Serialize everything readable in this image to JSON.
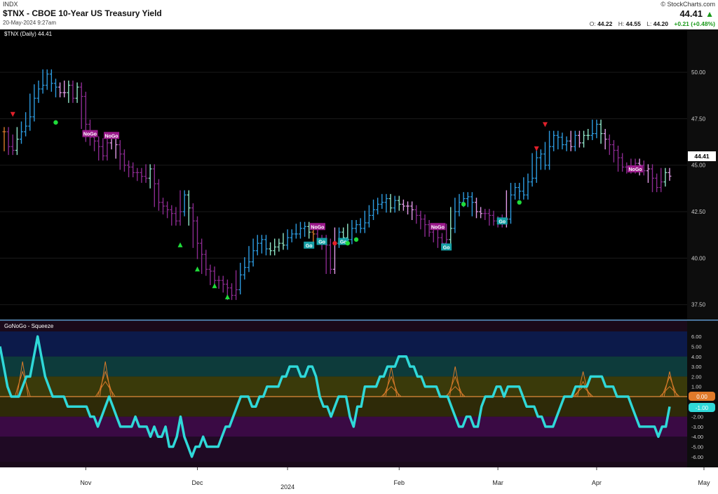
{
  "header": {
    "exchange": "INDX",
    "title": "$TNX - CBOE 10-Year US Treasury Yield",
    "timestamp": "20-May-2024 9:27am",
    "brand": "© StockCharts.com",
    "last": "44.41",
    "open_label": "O:",
    "open": "44.22",
    "high_label": "H:",
    "high": "44.55",
    "low_label": "L:",
    "low": "44.20",
    "change": "+0.21 (+0.48%)"
  },
  "colors": {
    "strong_go": "#2d9be0",
    "weak_go": "#8fe7c9",
    "nogo": "#8a2a8f",
    "weak_nogo": "#e29be8",
    "neutral": "#d87a2a",
    "oscillator": "#2fd8d8",
    "bullish_triangle": "#1fdc3a",
    "bearish_triangle": "#e0202a"
  },
  "chart_data": [
    {
      "type": "line",
      "panel": "price",
      "legend": "$TNX (Daily) 44.41",
      "last_value_label": "44.41",
      "ylim": [
        37.0,
        52.0
      ],
      "y_ticks": [
        "50.00",
        "47.50",
        "45.00",
        "42.50",
        "40.00",
        "37.50"
      ],
      "x_tick_labels": [
        "Nov",
        "Dec",
        "2024",
        "Feb",
        "Mar",
        "Apr",
        "May"
      ],
      "series": [
        {
          "values": [
            46.8,
            46.0,
            45.8,
            46.4,
            46.8,
            47.1,
            47.6,
            48.6,
            49.1,
            49.3,
            49.9,
            49.4,
            49.2,
            48.9,
            48.9,
            49.3,
            48.6,
            49.2,
            48.7,
            47.2,
            46.5,
            46.3,
            46.0,
            45.5,
            46.2,
            46.5,
            46.1,
            45.6,
            45.0,
            44.9,
            44.6,
            44.6,
            44.4,
            44.3,
            44.8,
            44.0,
            43.0,
            42.8,
            42.6,
            42.4,
            42.0,
            42.5,
            43.4,
            42.7,
            42.0,
            40.8,
            40.2,
            39.4,
            39.3,
            38.8,
            38.8,
            38.6,
            38.4,
            38.0,
            38.3,
            39.1,
            39.5,
            39.8,
            40.4,
            40.8,
            41.0,
            40.5,
            40.4,
            40.6,
            40.8,
            40.7,
            41.1,
            41.3,
            41.3,
            41.6,
            41.7,
            41.4,
            41.3,
            41.0,
            41.0,
            40.7,
            39.4,
            40.8,
            41.4,
            41.1,
            41.0,
            41.6,
            41.8,
            41.6,
            41.9,
            42.3,
            42.6,
            42.9,
            43.0,
            43.2,
            42.7,
            43.1,
            42.9,
            42.8,
            42.8,
            42.6,
            42.3,
            42.1,
            41.8,
            41.4,
            41.6,
            41.1,
            40.8,
            41.0,
            41.6,
            42.5,
            43.0,
            43.2,
            43.3,
            43.0,
            42.5,
            42.4,
            42.4,
            42.3,
            42.0,
            42.0,
            41.9,
            42.1,
            43.4,
            43.8,
            43.6,
            43.4,
            44.1,
            44.3,
            45.4,
            45.6,
            45.0,
            46.0,
            46.6,
            46.5,
            46.1,
            46.3,
            46.0,
            46.6,
            46.2,
            46.6,
            46.6,
            46.7,
            47.2,
            46.7,
            46.4,
            46.1,
            45.8,
            45.4,
            44.9,
            44.9,
            44.8,
            45.1,
            45.0,
            44.7,
            44.8,
            44.3,
            43.8,
            44.1,
            44.6,
            44.41
          ]
        }
      ],
      "markers": [
        {
          "x": 2,
          "y": 47.75,
          "shape": "down-triangle",
          "color": "#e0202a"
        },
        {
          "x": 12,
          "y": 47.3,
          "shape": "circle",
          "color": "#1fdc3a"
        },
        {
          "x": 20,
          "y": 46.7,
          "label": "NoGo"
        },
        {
          "x": 25,
          "y": 46.6,
          "label": "NoGo"
        },
        {
          "x": 41,
          "y": 40.7,
          "shape": "up-triangle",
          "color": "#1fdc3a"
        },
        {
          "x": 45,
          "y": 39.4,
          "shape": "up-triangle",
          "color": "#1fdc3a"
        },
        {
          "x": 49,
          "y": 38.5,
          "shape": "up-triangle",
          "color": "#1fdc3a"
        },
        {
          "x": 52,
          "y": 37.9,
          "shape": "up-triangle",
          "color": "#1fdc3a"
        },
        {
          "x": 71,
          "y": 40.7,
          "label": "Go"
        },
        {
          "x": 73,
          "y": 41.7,
          "label": "NoGo"
        },
        {
          "x": 74,
          "y": 40.9,
          "label": "Go"
        },
        {
          "x": 77,
          "y": 40.8,
          "shape": "circle",
          "color": "#e0202a"
        },
        {
          "x": 79,
          "y": 40.9,
          "label": "Go"
        },
        {
          "x": 80,
          "y": 40.8,
          "shape": "circle",
          "color": "#1fdc3a"
        },
        {
          "x": 82,
          "y": 41.0,
          "shape": "circle",
          "color": "#1fdc3a"
        },
        {
          "x": 101,
          "y": 41.7,
          "label": "NoGo"
        },
        {
          "x": 103,
          "y": 40.6,
          "label": "Go"
        },
        {
          "x": 107,
          "y": 42.9,
          "shape": "circle",
          "color": "#1fdc3a"
        },
        {
          "x": 116,
          "y": 42.0,
          "label": "Go"
        },
        {
          "x": 120,
          "y": 43.0,
          "shape": "circle",
          "color": "#1fdc3a"
        },
        {
          "x": 124,
          "y": 45.9,
          "shape": "down-triangle",
          "color": "#e0202a"
        },
        {
          "x": 126,
          "y": 47.2,
          "shape": "down-triangle",
          "color": "#e0202a"
        },
        {
          "x": 147,
          "y": 44.8,
          "label": "NoGo"
        }
      ]
    },
    {
      "type": "line",
      "panel": "oscillator",
      "legend": "GoNoGo - Squeeze",
      "ylim": [
        -6.5,
        6.5
      ],
      "y_ticks": [
        "6.00",
        "5.00",
        "4.00",
        "3.00",
        "2.00",
        "1.00",
        "0.00",
        "-1.00",
        "-2.00",
        "-3.00",
        "-4.00",
        "-5.00",
        "-6.00"
      ],
      "zero_label": "0.00",
      "last_value_label": "-1.00",
      "series": [
        {
          "values": [
            5,
            3,
            1,
            0,
            0,
            0,
            1,
            2,
            2,
            4,
            6,
            4,
            2,
            1,
            0,
            0,
            0,
            0,
            -1,
            -1,
            -1,
            -1,
            -1,
            -1,
            -2,
            -2,
            -3,
            -2,
            -1,
            0,
            -1,
            -2,
            -3,
            -3,
            -3,
            -3,
            -2,
            -3,
            -3,
            -3,
            -4,
            -3,
            -4,
            -4,
            -3,
            -5,
            -5,
            -4,
            -2,
            -4,
            -5,
            -6,
            -5,
            -5,
            -4,
            -5,
            -5,
            -5,
            -5,
            -4,
            -3,
            -3,
            -2,
            -1,
            0,
            0,
            0,
            -1,
            -1,
            0,
            0,
            1,
            1,
            1,
            1,
            2,
            2,
            3,
            3,
            3,
            2,
            2,
            3,
            3,
            2,
            0,
            -1,
            -1,
            -2,
            -1,
            0,
            0,
            0,
            -2,
            -3,
            -1,
            -1,
            1,
            1,
            1,
            1,
            2,
            2,
            3,
            3,
            3,
            4,
            4,
            4,
            3,
            3,
            2,
            2,
            1,
            1,
            1,
            1,
            0,
            0,
            0,
            -1,
            -2,
            -3,
            -3,
            -2,
            -2,
            -3,
            -3,
            -1,
            0,
            0,
            0,
            1,
            1,
            0,
            1,
            1,
            1,
            1,
            0,
            -1,
            -1,
            -1,
            -2,
            -2,
            -3,
            -3,
            -3,
            -2,
            -1,
            0,
            0,
            0,
            1,
            1,
            1,
            1,
            2,
            2,
            2,
            2,
            1,
            1,
            1,
            0,
            0,
            0,
            0,
            -1,
            -2,
            -3,
            -3,
            -3,
            -3,
            -3,
            -4,
            -3,
            -3,
            -1
          ]
        }
      ],
      "squeeze_triangles": [
        {
          "x": 6,
          "heights": [
            3.5,
            2.5
          ]
        },
        {
          "x": 28,
          "heights": [
            3.5,
            2.5,
            1.5
          ]
        },
        {
          "x": 104,
          "heights": [
            3.0,
            2.0,
            1.0
          ]
        },
        {
          "x": 121,
          "heights": [
            3.0,
            2.0,
            1.0
          ]
        },
        {
          "x": 155,
          "heights": [
            2.5,
            1.5,
            1.0
          ]
        },
        {
          "x": 178,
          "heights": [
            2.5,
            2.0,
            1.0
          ]
        },
        {
          "x": 208,
          "heights": [
            3.0,
            2.0,
            1.0
          ]
        },
        {
          "x": 221,
          "heights": [
            3.5,
            2.5,
            1.5
          ]
        },
        {
          "x": 230,
          "heights": [
            2.5,
            1.5
          ]
        },
        {
          "x": 271,
          "heights": [
            1.5,
            1.0
          ]
        }
      ]
    }
  ]
}
